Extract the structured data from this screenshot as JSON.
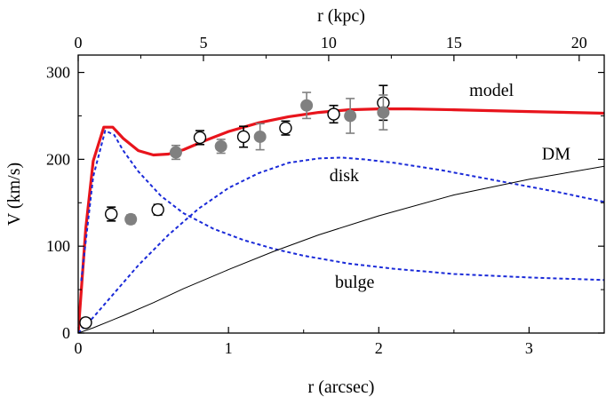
{
  "chart_data": {
    "type": "line",
    "xlabel": "r (arcsec)",
    "ylabel": "V (km/s)",
    "x2label": "r (kpc)",
    "xlim": [
      0,
      3.5
    ],
    "ylim": [
      0,
      320
    ],
    "x2lim": [
      0,
      21
    ],
    "xticks": [
      0,
      1,
      2,
      3
    ],
    "yticks": [
      0,
      100,
      200,
      300
    ],
    "x2ticks": [
      0,
      5,
      10,
      15,
      20
    ],
    "xtick_labels": [
      "0",
      "1",
      "2",
      "3"
    ],
    "ytick_labels": [
      "0",
      "100",
      "200",
      "300"
    ],
    "x2tick_labels": [
      "0",
      "5",
      "10",
      "15",
      "20"
    ],
    "series": [
      {
        "name": "model",
        "style": "solid-thick",
        "color": "#e8141c",
        "x": [
          0,
          0.05,
          0.1,
          0.17,
          0.23,
          0.3,
          0.4,
          0.5,
          0.6,
          0.7,
          0.85,
          1.0,
          1.2,
          1.4,
          1.6,
          1.8,
          2.0,
          2.2,
          2.5,
          3.0,
          3.5
        ],
        "y": [
          0,
          120,
          198,
          237,
          237,
          224,
          210,
          205,
          206,
          211,
          222,
          232,
          242,
          249,
          254,
          257,
          258,
          258,
          257,
          255,
          253
        ]
      },
      {
        "name": "disk",
        "style": "dashed",
        "color": "#1a2ad8",
        "x": [
          0,
          0.1,
          0.2,
          0.3,
          0.4,
          0.6,
          0.8,
          1.0,
          1.2,
          1.4,
          1.6,
          1.75,
          1.9,
          2.1,
          2.4,
          2.8,
          3.2,
          3.5
        ],
        "y": [
          0,
          18,
          38,
          58,
          78,
          113,
          143,
          167,
          184,
          196,
          201,
          202,
          200,
          196,
          188,
          175,
          162,
          151
        ]
      },
      {
        "name": "bulge",
        "style": "dashed",
        "color": "#1a2ad8",
        "x": [
          0.02,
          0.1,
          0.18,
          0.24,
          0.3,
          0.4,
          0.55,
          0.7,
          0.9,
          1.1,
          1.3,
          1.5,
          1.8,
          2.1,
          2.5,
          3.0,
          3.5
        ],
        "y": [
          60,
          180,
          233,
          228,
          210,
          186,
          158,
          138,
          120,
          107,
          97,
          89,
          80,
          74,
          68,
          64,
          61
        ]
      },
      {
        "name": "DM",
        "style": "solid-thin",
        "color": "#000000",
        "x": [
          0,
          0.1,
          0.3,
          0.5,
          0.7,
          1.0,
          1.3,
          1.6,
          2.0,
          2.5,
          3.0,
          3.5
        ],
        "y": [
          0,
          6,
          20,
          35,
          51,
          73,
          94,
          113,
          135,
          159,
          177,
          192
        ]
      }
    ],
    "points": [
      {
        "name": "open",
        "marker": "open-circle",
        "x": [
          0.05,
          0.22,
          0.53,
          0.81,
          1.1,
          1.38,
          1.7,
          2.03
        ],
        "y": [
          12,
          137,
          142,
          225,
          226,
          236,
          252,
          265
        ],
        "err": [
          5,
          8,
          6,
          8,
          12,
          8,
          10,
          20
        ]
      },
      {
        "name": "filled",
        "marker": "filled-circle",
        "x": [
          0.35,
          0.65,
          0.95,
          1.21,
          1.52,
          1.81,
          2.03
        ],
        "y": [
          131,
          208,
          215,
          226,
          262,
          250,
          254
        ],
        "err": [
          5,
          8,
          8,
          15,
          15,
          20,
          20
        ]
      }
    ],
    "annotations": [
      {
        "text": "model",
        "x": 2.75,
        "y": 273
      },
      {
        "text": "DM",
        "x": 3.18,
        "y": 200
      },
      {
        "text": "disk",
        "x": 1.77,
        "y": 175
      },
      {
        "text": "bulge",
        "x": 1.84,
        "y": 52
      }
    ]
  }
}
